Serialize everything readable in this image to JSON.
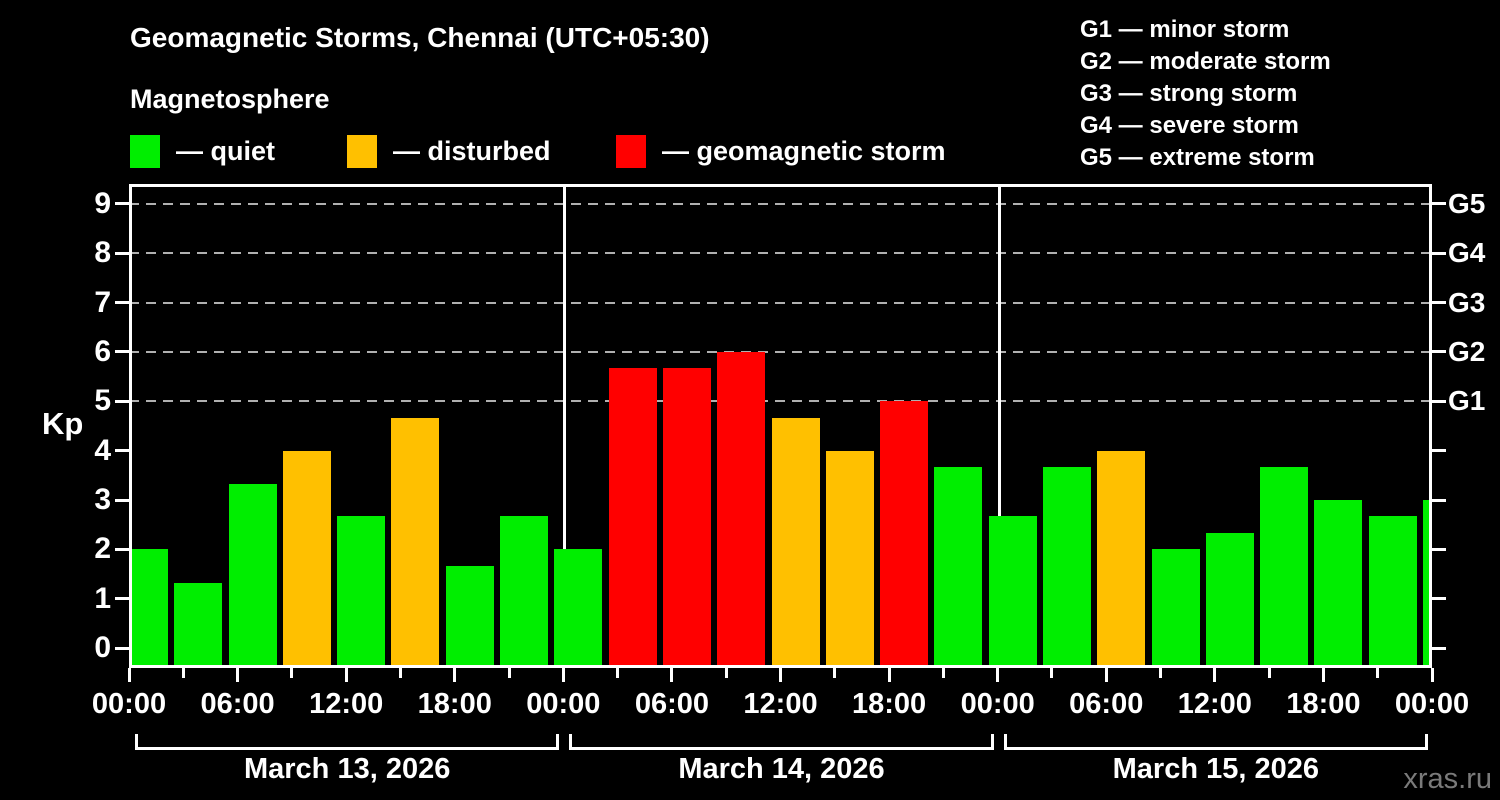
{
  "header": {
    "title": "Geomagnetic Storms, Chennai (UTC+05:30)",
    "subtitle": "Magnetosphere"
  },
  "legend": [
    {
      "status": "quiet",
      "label": "— quiet"
    },
    {
      "status": "disturbed",
      "label": "— disturbed"
    },
    {
      "status": "storm",
      "label": "— geomagnetic storm"
    }
  ],
  "g_legend": [
    "G1 — minor storm",
    "G2 — moderate storm",
    "G3 — strong storm",
    "G4 — severe storm",
    "G5 — extreme storm"
  ],
  "watermark": "xras.ru",
  "chart_data": {
    "type": "bar",
    "title": "Geomagnetic Storms, Chennai (UTC+05:30)",
    "ylabel": "Kp",
    "ylim": [
      0,
      9
    ],
    "y_ticks": [
      0,
      1,
      2,
      3,
      4,
      5,
      6,
      7,
      8,
      9
    ],
    "gridlines_at_kp": [
      5,
      6,
      7,
      8,
      9
    ],
    "right_axis_labels": [
      {
        "label": "G1",
        "kp": 5
      },
      {
        "label": "G2",
        "kp": 6
      },
      {
        "label": "G3",
        "kp": 7
      },
      {
        "label": "G4",
        "kp": 8
      },
      {
        "label": "G5",
        "kp": 9
      }
    ],
    "x_tick_labels": [
      "00:00",
      "06:00",
      "12:00",
      "18:00",
      "00:00",
      "06:00",
      "12:00",
      "18:00",
      "00:00",
      "06:00",
      "12:00",
      "18:00",
      "00:00"
    ],
    "bar_interval_hours": 3,
    "days": [
      {
        "date": "March 13, 2026",
        "values": [
          2,
          1.33,
          3.33,
          4,
          2.67,
          4.67,
          1.67,
          2.67
        ],
        "status": [
          "quiet",
          "quiet",
          "quiet",
          "disturbed",
          "quiet",
          "disturbed",
          "quiet",
          "quiet"
        ]
      },
      {
        "date": "March 14, 2026",
        "values": [
          2,
          5.67,
          5.67,
          6,
          4.67,
          4,
          5,
          3.67
        ],
        "status": [
          "quiet",
          "storm",
          "storm",
          "storm",
          "disturbed",
          "disturbed",
          "storm",
          "quiet"
        ]
      },
      {
        "date": "March 15, 2026",
        "values": [
          2.67,
          3.67,
          4,
          2,
          2.33,
          3.67,
          3,
          2.67
        ],
        "status": [
          "quiet",
          "quiet",
          "disturbed",
          "quiet",
          "quiet",
          "quiet",
          "quiet",
          "quiet"
        ]
      }
    ],
    "next_day_partial": {
      "value": 3,
      "status": "quiet"
    },
    "colors": {
      "quiet": "#00ee00",
      "disturbed": "#ffc000",
      "storm": "#ff0000"
    }
  }
}
